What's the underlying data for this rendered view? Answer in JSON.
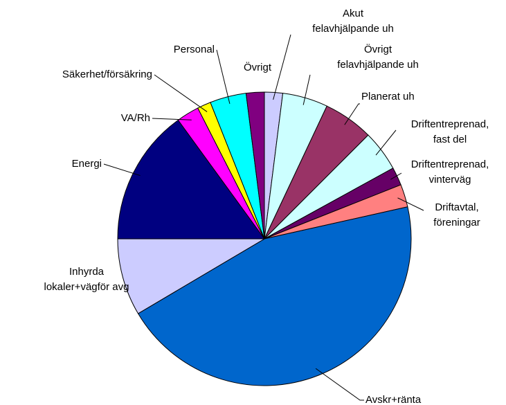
{
  "chart_data": {
    "type": "pie",
    "categories": [
      [
        "Akut",
        "felavhjälpande uh"
      ],
      [
        "Övrigt",
        "felavhjälpande uh"
      ],
      [
        "Planerat uh"
      ],
      [
        "Driftentreprenad,",
        "fast del"
      ],
      [
        "Driftentreprenad,",
        "vinterväg"
      ],
      [
        "Driftavtal,",
        "föreningar"
      ],
      [
        "Avskr+ränta"
      ],
      [
        "Inhyrda",
        "lokaler+vägför avg"
      ],
      [
        "Energi"
      ],
      [
        "VA/Rh"
      ],
      [
        "Säkerhet/försäkring"
      ],
      [
        "Personal"
      ],
      [
        "Övrigt"
      ]
    ],
    "values": [
      2,
      5,
      5.5,
      4.5,
      2,
      2.5,
      45,
      8.5,
      15,
      2.5,
      1.5,
      4,
      2
    ],
    "colors": [
      "#ccccff",
      "#ccffff",
      "#993366",
      "#ccffff",
      "#660066",
      "#ff8080",
      "#0066cc",
      "#ccccff",
      "#000080",
      "#ff00ff",
      "#ffff00",
      "#00ffff",
      "#800080"
    ]
  }
}
